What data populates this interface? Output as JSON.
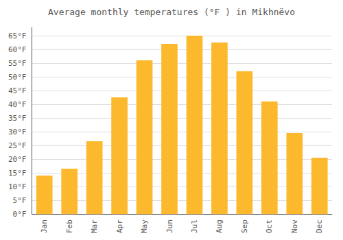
{
  "chart_data": {
    "type": "bar",
    "title": "Average monthly temperatures (°F ) in Mikhnëvo",
    "categories": [
      "Jan",
      "Feb",
      "Mar",
      "Apr",
      "May",
      "Jun",
      "Jul",
      "Aug",
      "Sep",
      "Oct",
      "Nov",
      "Dec"
    ],
    "values": [
      14,
      16.5,
      26.5,
      42.5,
      56,
      62,
      65,
      62.5,
      52,
      41,
      29.5,
      20.5
    ],
    "color": "#FDB92E",
    "ylim": [
      0,
      68
    ],
    "yticks": [
      {
        "value": 0,
        "label": "0°F"
      },
      {
        "value": 5,
        "label": "5°F"
      },
      {
        "value": 10,
        "label": "10°F"
      },
      {
        "value": 15,
        "label": "15°F"
      },
      {
        "value": 20,
        "label": "20°F"
      },
      {
        "value": 25,
        "label": "25°F"
      },
      {
        "value": 30,
        "label": "30°F"
      },
      {
        "value": 35,
        "label": "35°F"
      },
      {
        "value": 40,
        "label": "40°F"
      },
      {
        "value": 45,
        "label": "45°F"
      },
      {
        "value": 50,
        "label": "50°F"
      },
      {
        "value": 55,
        "label": "55°F"
      },
      {
        "value": 60,
        "label": "60°F"
      },
      {
        "value": 65,
        "label": "65°F"
      }
    ],
    "grid": true
  }
}
